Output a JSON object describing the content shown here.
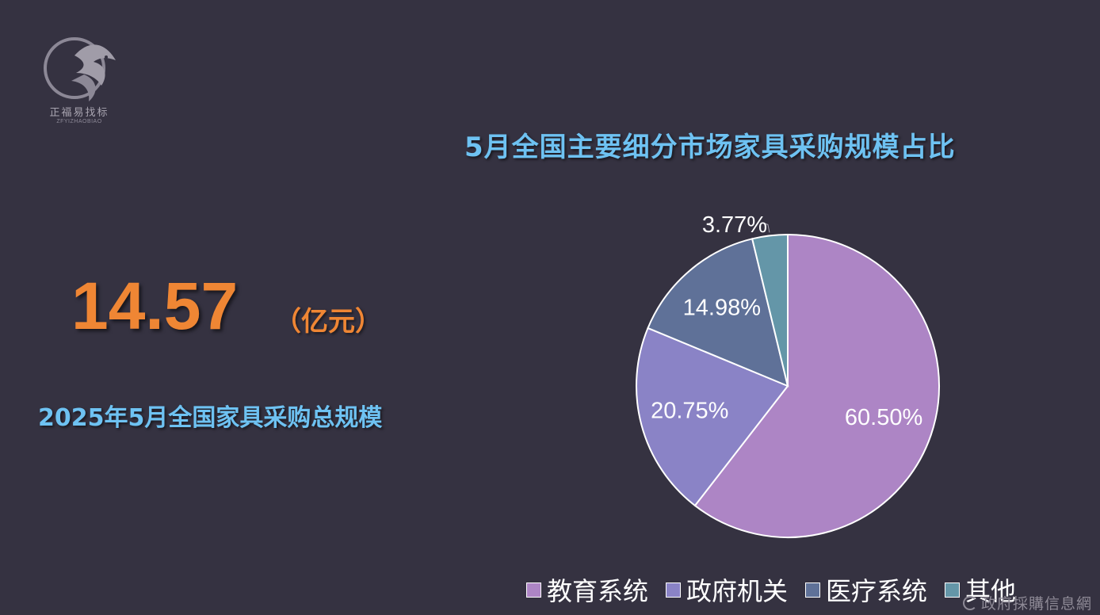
{
  "logo": {
    "name": "正福易找标",
    "subname": "ZFYIZHAOBIAO"
  },
  "headline": {
    "value": "14.57",
    "unit": "（亿元）",
    "caption": "2025年5月全国家具采购总规模"
  },
  "chart_data": {
    "type": "pie",
    "title": "5月全国主要细分市场家具采购规模占比",
    "series": [
      {
        "name": "教育系统",
        "value": 60.5,
        "label": "60.50%",
        "color": "#ad85c5"
      },
      {
        "name": "政府机关",
        "value": 20.75,
        "label": "20.75%",
        "color": "#8a83c6"
      },
      {
        "name": "医疗系统",
        "value": 14.98,
        "label": "14.98%",
        "color": "#5f7198"
      },
      {
        "name": "其他",
        "value": 3.77,
        "label": "3.77%",
        "color": "#6496a8"
      }
    ],
    "legend_position": "bottom"
  },
  "watermark": "政府採購信息網"
}
